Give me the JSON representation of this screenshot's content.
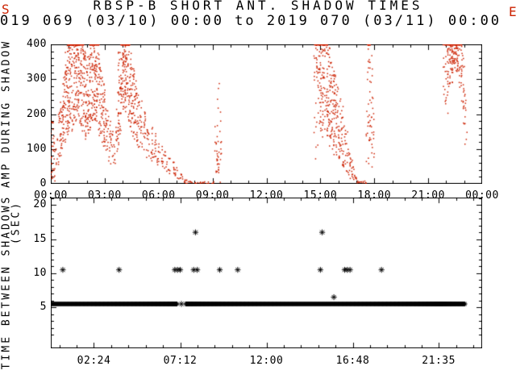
{
  "page": {
    "background": "#ffffff"
  },
  "header": {
    "title": "RBSP-B SHORT ANT. SHADOW TIMES",
    "subtitle": "019 069 (03/10) 00:00 to 2019 070 (03/11) 00:00"
  },
  "corner_fragments": {
    "top_left": "S",
    "top_right": "E",
    "color": "#cc2200"
  },
  "chart_data": [
    {
      "type": "scatter",
      "panel": "top",
      "title": "RBSP-B SHORT ANT. SHADOW TIMES",
      "ylabel": "AMP DURING SHADOW",
      "xlim_hours": [
        0,
        24
      ],
      "ylim": [
        0,
        400
      ],
      "yticks": [
        0,
        100,
        200,
        300,
        400
      ],
      "ytick_minor_step": 20,
      "xticks": [
        {
          "t": 0,
          "label": "00:00"
        },
        {
          "t": 3,
          "label": "03:00"
        },
        {
          "t": 6,
          "label": "06:00"
        },
        {
          "t": 9,
          "label": "09:00"
        },
        {
          "t": 12,
          "label": "12:00"
        },
        {
          "t": 15,
          "label": "15:00"
        },
        {
          "t": 18,
          "label": "18:00"
        },
        {
          "t": 21,
          "label": "21:00"
        },
        {
          "t": 24,
          "label": "00:00"
        }
      ],
      "xtick_minor_step_hours": 1,
      "marker": "dot",
      "color": "#cc2200",
      "grid": false,
      "scatter_profile_t_lo_hi_n": [
        [
          0.05,
          0,
          180,
          22
        ],
        [
          0.18,
          0,
          140,
          14
        ],
        [
          0.35,
          30,
          130,
          10
        ],
        [
          0.5,
          70,
          210,
          18
        ],
        [
          0.62,
          90,
          260,
          24
        ],
        [
          0.75,
          110,
          320,
          30
        ],
        [
          0.88,
          140,
          380,
          34
        ],
        [
          1.0,
          150,
          400,
          40
        ],
        [
          1.12,
          170,
          400,
          42
        ],
        [
          1.25,
          150,
          400,
          40
        ],
        [
          1.38,
          180,
          400,
          44
        ],
        [
          1.5,
          200,
          400,
          44
        ],
        [
          1.62,
          170,
          400,
          40
        ],
        [
          1.75,
          150,
          400,
          38
        ],
        [
          1.88,
          130,
          380,
          32
        ],
        [
          2.0,
          120,
          340,
          28
        ],
        [
          2.12,
          140,
          370,
          32
        ],
        [
          2.25,
          160,
          400,
          38
        ],
        [
          2.38,
          180,
          400,
          40
        ],
        [
          2.5,
          170,
          400,
          38
        ],
        [
          2.62,
          150,
          400,
          34
        ],
        [
          2.75,
          120,
          360,
          28
        ],
        [
          2.88,
          100,
          310,
          24
        ],
        [
          3.0,
          90,
          270,
          20
        ],
        [
          3.12,
          80,
          230,
          16
        ],
        [
          3.25,
          65,
          195,
          13
        ],
        [
          3.4,
          50,
          150,
          10
        ],
        [
          3.55,
          45,
          120,
          8
        ],
        [
          3.7,
          90,
          280,
          22
        ],
        [
          3.82,
          140,
          380,
          32
        ],
        [
          3.95,
          190,
          400,
          40
        ],
        [
          4.08,
          220,
          400,
          42
        ],
        [
          4.2,
          200,
          400,
          38
        ],
        [
          4.32,
          170,
          400,
          34
        ],
        [
          4.45,
          150,
          380,
          30
        ],
        [
          4.58,
          130,
          340,
          26
        ],
        [
          4.72,
          115,
          300,
          22
        ],
        [
          4.85,
          105,
          270,
          20
        ],
        [
          5.0,
          95,
          240,
          18
        ],
        [
          5.2,
          85,
          215,
          16
        ],
        [
          5.4,
          75,
          190,
          14
        ],
        [
          5.6,
          65,
          165,
          13
        ],
        [
          5.8,
          58,
          145,
          12
        ],
        [
          6.0,
          48,
          125,
          11
        ],
        [
          6.2,
          42,
          108,
          10
        ],
        [
          6.4,
          34,
          92,
          9
        ],
        [
          6.6,
          27,
          76,
          8
        ],
        [
          6.8,
          20,
          62,
          8
        ],
        [
          7.0,
          14,
          48,
          7
        ],
        [
          7.2,
          8,
          34,
          6
        ],
        [
          7.4,
          4,
          22,
          6
        ],
        [
          7.6,
          1,
          13,
          5
        ],
        [
          7.8,
          0,
          8,
          5
        ],
        [
          8.0,
          0,
          5,
          4
        ],
        [
          8.25,
          0,
          5,
          4
        ],
        [
          8.5,
          0,
          6,
          4
        ],
        [
          8.75,
          0,
          6,
          4
        ],
        [
          9.0,
          0,
          9,
          4
        ],
        [
          9.2,
          0,
          170,
          13
        ],
        [
          9.32,
          20,
          310,
          18
        ],
        [
          9.42,
          0,
          210,
          10
        ],
        [
          14.7,
          60,
          400,
          16
        ],
        [
          14.82,
          110,
          400,
          24
        ],
        [
          14.95,
          150,
          400,
          30
        ],
        [
          15.08,
          130,
          400,
          34
        ],
        [
          15.2,
          150,
          400,
          38
        ],
        [
          15.32,
          130,
          400,
          36
        ],
        [
          15.45,
          110,
          390,
          32
        ],
        [
          15.58,
          100,
          365,
          30
        ],
        [
          15.7,
          90,
          340,
          27
        ],
        [
          15.82,
          80,
          315,
          24
        ],
        [
          15.95,
          72,
          285,
          22
        ],
        [
          16.08,
          62,
          255,
          19
        ],
        [
          16.2,
          52,
          222,
          16
        ],
        [
          16.32,
          44,
          190,
          14
        ],
        [
          16.45,
          34,
          158,
          12
        ],
        [
          16.58,
          24,
          122,
          10
        ],
        [
          16.7,
          15,
          88,
          9
        ],
        [
          16.82,
          7,
          52,
          7
        ],
        [
          16.95,
          2,
          26,
          6
        ],
        [
          17.1,
          0,
          12,
          5
        ],
        [
          17.3,
          0,
          7,
          4
        ],
        [
          17.5,
          0,
          9,
          4
        ],
        [
          17.62,
          40,
          400,
          18
        ],
        [
          17.72,
          110,
          400,
          24
        ],
        [
          17.82,
          70,
          390,
          17
        ],
        [
          17.92,
          30,
          260,
          10
        ],
        [
          21.9,
          230,
          400,
          14
        ],
        [
          22.02,
          200,
          400,
          20
        ],
        [
          22.15,
          250,
          400,
          26
        ],
        [
          22.28,
          290,
          400,
          29
        ],
        [
          22.4,
          315,
          400,
          28
        ],
        [
          22.52,
          320,
          400,
          27
        ],
        [
          22.65,
          305,
          400,
          25
        ],
        [
          22.78,
          265,
          400,
          21
        ],
        [
          22.9,
          215,
          395,
          16
        ],
        [
          23.0,
          160,
          340,
          11
        ],
        [
          23.1,
          110,
          270,
          8
        ]
      ]
    },
    {
      "type": "scatter",
      "panel": "bottom",
      "ylabel": "TIME BETWEEN SHADOWS",
      "ylabel2": "(SEC)",
      "xlim_hours": [
        0,
        24
      ],
      "ylim": [
        -1,
        21.1
      ],
      "yticks": [
        5,
        10,
        15,
        20
      ],
      "ytick_minor_step": 1,
      "xticks": [
        {
          "t": 2.4,
          "label": "02:24"
        },
        {
          "t": 7.2,
          "label": "07:12"
        },
        {
          "t": 12.0,
          "label": "12:00"
        },
        {
          "t": 16.8,
          "label": "16:48"
        },
        {
          "t": 21.5833,
          "label": "21:35"
        }
      ],
      "xtick_minor_step_hours": 0.96,
      "xtick_minor_offset_hours": 0.48,
      "marker": "asterisk",
      "color": "#000000",
      "grid": false,
      "band": {
        "y": 5.5,
        "start": 0,
        "end": 23.05,
        "step": 0.045,
        "gaps": [
          [
            7.05,
            7.5
          ]
        ]
      },
      "isolated_points": [
        {
          "y": 5.5,
          "t": [
            7.27
          ]
        },
        {
          "y": 6.5,
          "t": [
            15.75
          ]
        },
        {
          "y": 10.5,
          "t": [
            0.67,
            3.8,
            6.9,
            7.05,
            7.2,
            7.95,
            8.15,
            9.4,
            10.4,
            15.0,
            16.35,
            16.5,
            16.65,
            18.4
          ]
        },
        {
          "y": 16.0,
          "t": [
            8.05,
            15.1
          ]
        }
      ]
    }
  ]
}
